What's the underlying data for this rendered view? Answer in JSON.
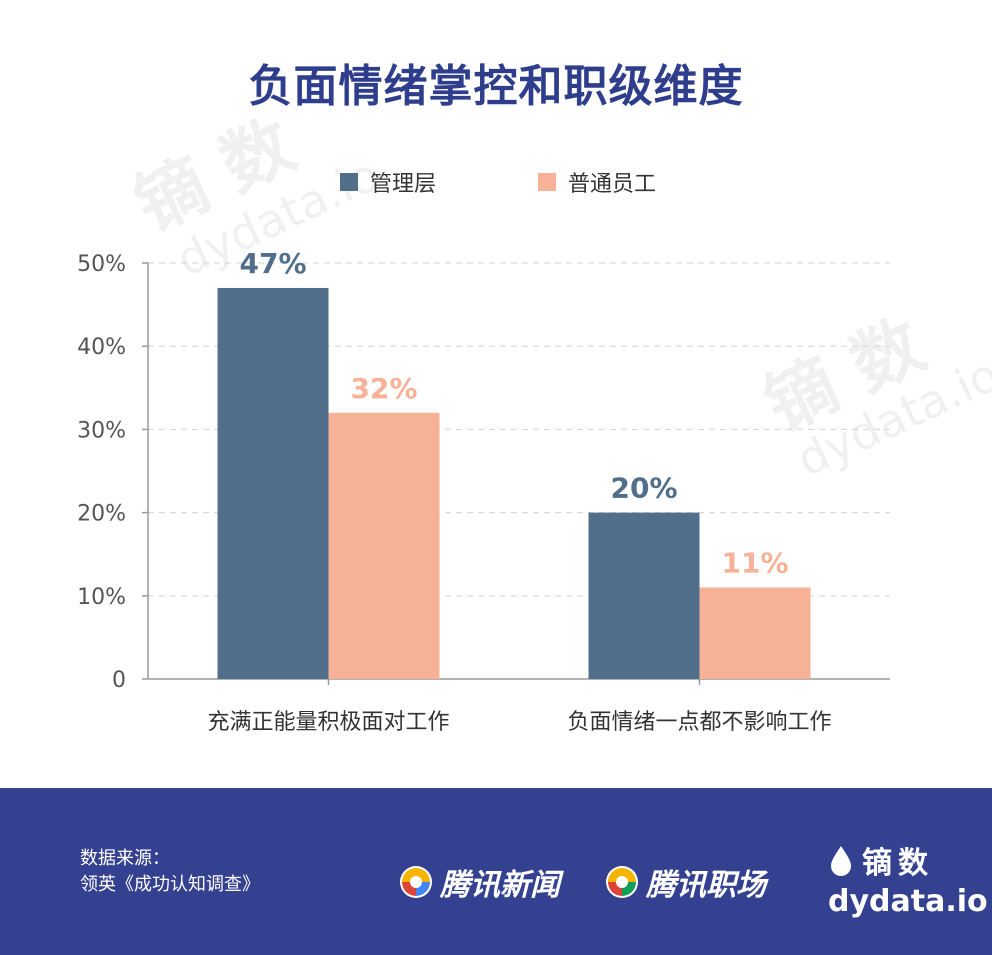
{
  "title": "负面情绪掌控和职级维度",
  "legend": [
    {
      "label": "管理层",
      "color": "#516f8b"
    },
    {
      "label": "普通员工",
      "color": "#f7b196"
    }
  ],
  "chart_data": {
    "type": "bar",
    "title": "负面情绪掌控和职级维度",
    "categories": [
      "充满正能量积极面对工作",
      "负面情绪一点都不影响工作"
    ],
    "series": [
      {
        "name": "管理层",
        "values": [
          47,
          20
        ],
        "labels": [
          "47%",
          "20%"
        ],
        "color": "#516f8b"
      },
      {
        "name": "普通员工",
        "values": [
          32,
          11
        ],
        "labels": [
          "32%",
          "11%"
        ],
        "color": "#f7b196"
      }
    ],
    "yticks": [
      "0",
      "10%",
      "20%",
      "30%",
      "40%",
      "50%"
    ],
    "ytick_values": [
      0,
      10,
      20,
      30,
      40,
      50
    ],
    "ylim": [
      0,
      50
    ],
    "grid": true,
    "legend_position": "top",
    "xlabel": "",
    "ylabel": ""
  },
  "footer": {
    "source_title": "数据来源：",
    "source_text": "领英《成功认知调查》",
    "brand1": "腾讯新闻",
    "brand2": "腾讯职场",
    "logo_cn": "镝数",
    "logo_domain": "dydata.io"
  },
  "watermark": {
    "cn": "镝 数",
    "en": "dydata.io"
  },
  "colors": {
    "title": "#2f3e8c",
    "footer_bg": "#344191"
  }
}
